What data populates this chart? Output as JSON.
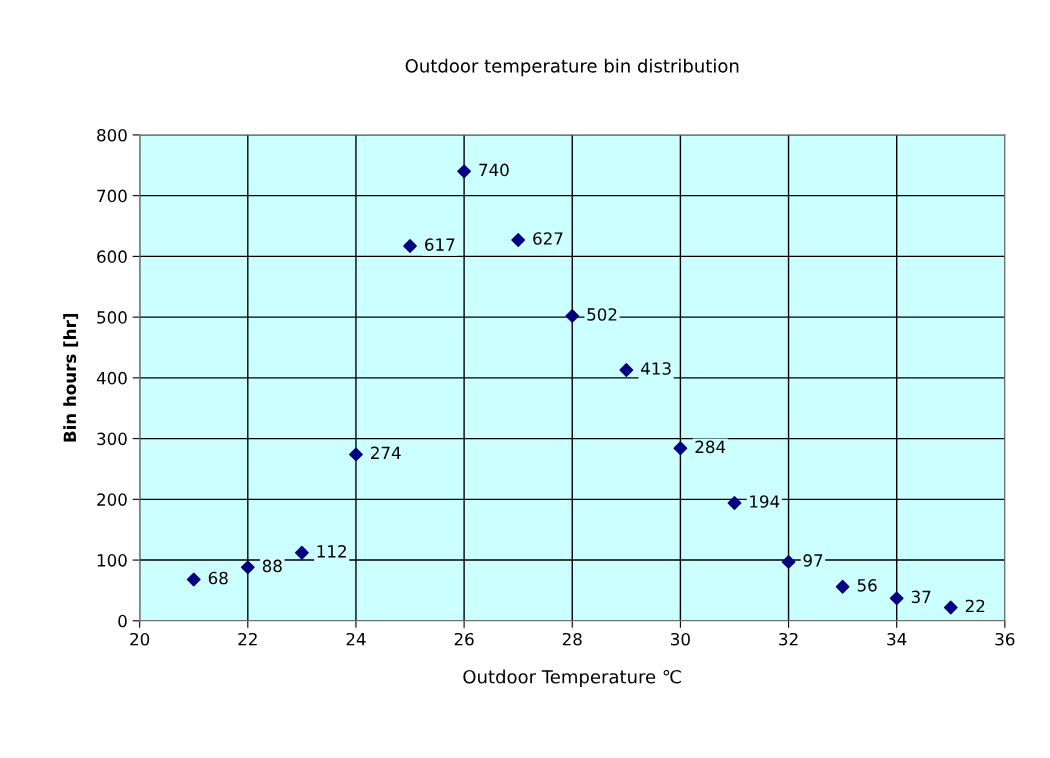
{
  "chart_data": {
    "type": "scatter",
    "title": "Outdoor temperature bin distribution",
    "xlabel": "Outdoor Temperature ℃",
    "ylabel": "Bin hours [hr]",
    "x": [
      21,
      22,
      23,
      24,
      25,
      26,
      27,
      28,
      29,
      30,
      31,
      32,
      33,
      34,
      35
    ],
    "series": [
      {
        "color": "#000080",
        "values": [
          68,
          88,
          112,
          274,
          617,
          740,
          627,
          502,
          413,
          284,
          194,
          97,
          56,
          37,
          22
        ]
      }
    ],
    "data_labels": true,
    "marker": "diamond",
    "xlim": [
      20,
      36
    ],
    "xticks": [
      20,
      22,
      24,
      26,
      28,
      30,
      32,
      34,
      36
    ],
    "ylim": [
      0,
      800
    ],
    "yticks": [
      0,
      100,
      200,
      300,
      400,
      500,
      600,
      700,
      800
    ],
    "grid": true,
    "legend": false
  }
}
